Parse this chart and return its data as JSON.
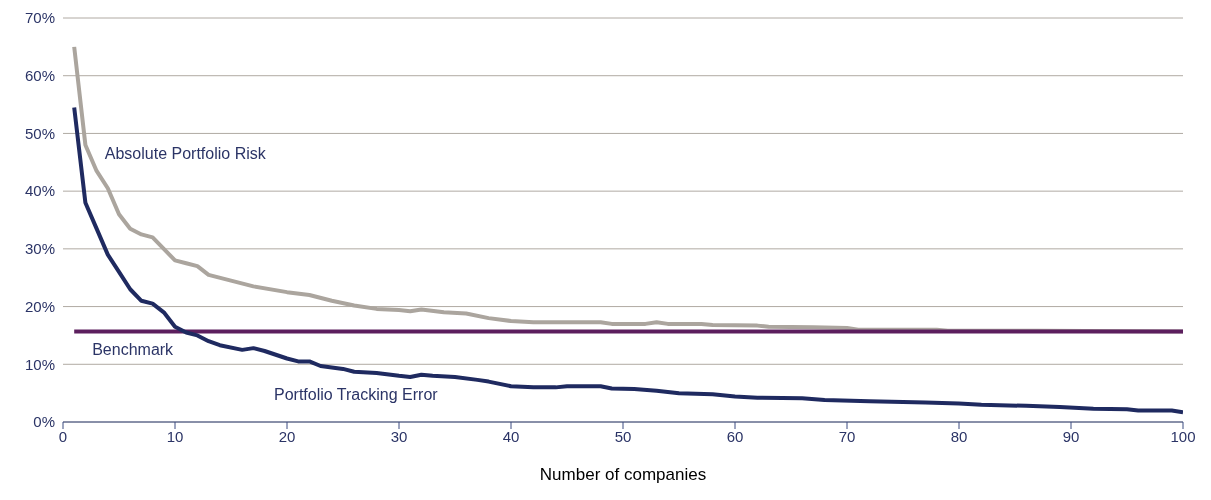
{
  "chart_data": {
    "type": "line",
    "xlabel": "Number of companies",
    "xlim": [
      0,
      100
    ],
    "xticks": [
      0,
      10,
      20,
      30,
      40,
      50,
      60,
      70,
      80,
      90,
      100
    ],
    "ylim": [
      0,
      70
    ],
    "yticks": [
      {
        "value": 0,
        "label": "0%"
      },
      {
        "value": 10,
        "label": "10%"
      },
      {
        "value": 20,
        "label": "20%"
      },
      {
        "value": 30,
        "label": "30%"
      },
      {
        "value": 40,
        "label": "40%"
      },
      {
        "value": 50,
        "label": "50%"
      },
      {
        "value": 60,
        "label": "60%"
      },
      {
        "value": 70,
        "label": "70%"
      }
    ],
    "grid": "y",
    "legend": false,
    "marker": "none",
    "line_style": "solid",
    "series": [
      {
        "name": "Absolute Portfolio Risk",
        "color": "#aba59e",
        "x": [
          1,
          2,
          3,
          4,
          5,
          6,
          7,
          8,
          9,
          10,
          11,
          12,
          13,
          15,
          17,
          20,
          22,
          24,
          26,
          28,
          30,
          31,
          32,
          34,
          36,
          38,
          40,
          42,
          48,
          49,
          52,
          53,
          54,
          57,
          58,
          62,
          63,
          67,
          70,
          71,
          78,
          79,
          87,
          100
        ],
        "values": [
          65,
          48,
          43.5,
          40.5,
          36,
          33.5,
          32.5,
          32,
          30,
          28,
          27.5,
          27,
          25.5,
          24.5,
          23.5,
          22.5,
          22,
          21,
          20.2,
          19.6,
          19.4,
          19.2,
          19.5,
          19,
          18.8,
          18,
          17.5,
          17.3,
          17.3,
          17,
          17,
          17.3,
          17,
          17,
          16.8,
          16.7,
          16.5,
          16.4,
          16.3,
          16,
          16,
          15.8,
          15.8,
          15.7
        ]
      },
      {
        "name": "Benchmark",
        "color": "#5c1f5e",
        "x": [
          1,
          100
        ],
        "values": [
          15.7,
          15.7
        ]
      },
      {
        "name": "Portfolio Tracking Error",
        "color": "#1f2a60",
        "x": [
          1,
          2,
          3,
          4,
          5,
          6,
          7,
          8,
          9,
          10,
          11,
          12,
          13,
          14,
          16,
          17,
          18,
          20,
          21,
          22,
          23,
          25,
          26,
          28,
          30,
          31,
          32,
          33,
          35,
          37,
          38,
          40,
          42,
          44,
          45,
          48,
          49,
          51,
          53,
          55,
          58,
          60,
          62,
          66,
          68,
          72,
          77,
          80,
          82,
          86,
          89,
          92,
          95,
          96,
          99,
          100
        ],
        "values": [
          54.5,
          38,
          33.5,
          29,
          26,
          23,
          21,
          20.5,
          19,
          16.5,
          15.5,
          15,
          14,
          13.3,
          12.5,
          12.8,
          12.3,
          11,
          10.5,
          10.5,
          9.7,
          9.2,
          8.7,
          8.5,
          8,
          7.8,
          8.2,
          8,
          7.8,
          7.3,
          7,
          6.2,
          6,
          6,
          6.2,
          6.2,
          5.8,
          5.7,
          5.4,
          5,
          4.8,
          4.4,
          4.2,
          4.1,
          3.8,
          3.6,
          3.4,
          3.2,
          3,
          2.8,
          2.6,
          2.3,
          2.2,
          2,
          2,
          1.7
        ]
      }
    ]
  }
}
